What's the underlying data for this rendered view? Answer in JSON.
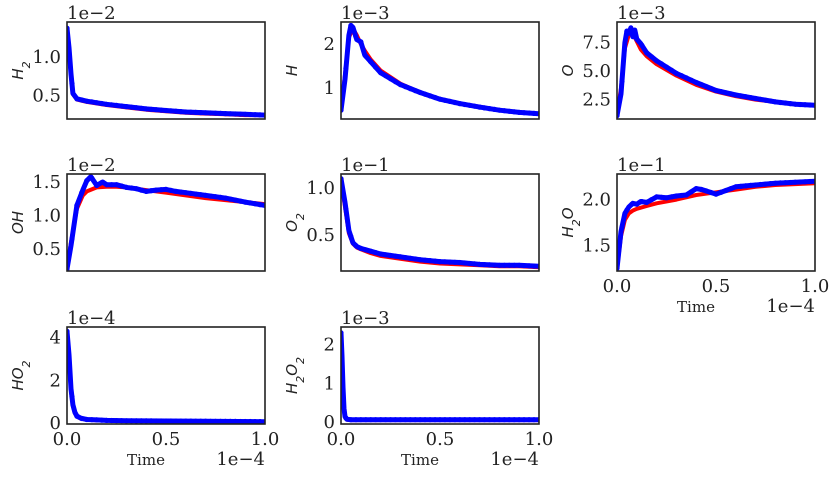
{
  "chart_data": [
    {
      "type": "line",
      "id": "h2",
      "ylabel": "H",
      "ylabel_sub": "2",
      "sci": "1e−2",
      "xlim": [
        0,
        1.0
      ],
      "ylim": [
        0.2,
        1.45
      ],
      "yticks": [
        0.5,
        1.0
      ],
      "ytick_labels": [
        "0.5",
        "1.0"
      ],
      "show_xticks": false,
      "xlabel": "",
      "xsci": "",
      "series": [
        {
          "color": "#ff0000",
          "x": [
            0,
            0.01,
            0.02,
            0.03,
            0.05,
            0.1,
            0.2,
            0.3,
            0.4,
            0.5,
            0.6,
            0.7,
            0.8,
            0.9,
            1.0
          ],
          "y": [
            1.37,
            1.1,
            0.75,
            0.52,
            0.45,
            0.42,
            0.38,
            0.35,
            0.32,
            0.3,
            0.28,
            0.27,
            0.26,
            0.25,
            0.25
          ]
        },
        {
          "color": "#0000ff",
          "x": [
            0,
            0.01,
            0.02,
            0.03,
            0.05,
            0.1,
            0.2,
            0.3,
            0.4,
            0.5,
            0.6,
            0.7,
            0.8,
            0.9,
            1.0
          ],
          "y": [
            1.37,
            1.12,
            0.78,
            0.53,
            0.46,
            0.43,
            0.39,
            0.36,
            0.33,
            0.31,
            0.29,
            0.28,
            0.27,
            0.26,
            0.25
          ]
        }
      ]
    },
    {
      "type": "line",
      "id": "h",
      "ylabel": "H",
      "ylabel_sub": "",
      "sci": "1e−3",
      "xlim": [
        0,
        1.0
      ],
      "ylim": [
        0.3,
        2.5
      ],
      "yticks": [
        1,
        2
      ],
      "ytick_labels": [
        "1",
        "2"
      ],
      "show_xticks": false,
      "xlabel": "",
      "xsci": "",
      "series": [
        {
          "color": "#ff0000",
          "x": [
            0,
            0.02,
            0.04,
            0.06,
            0.08,
            0.1,
            0.12,
            0.15,
            0.2,
            0.3,
            0.4,
            0.5,
            0.6,
            0.7,
            0.8,
            0.9,
            1.0
          ],
          "y": [
            0.55,
            1.3,
            2.15,
            2.35,
            2.2,
            2.0,
            1.85,
            1.65,
            1.4,
            1.1,
            0.9,
            0.75,
            0.65,
            0.58,
            0.5,
            0.45,
            0.42
          ]
        },
        {
          "color": "#0000ff",
          "x": [
            0,
            0.02,
            0.04,
            0.05,
            0.06,
            0.08,
            0.1,
            0.12,
            0.15,
            0.2,
            0.3,
            0.4,
            0.5,
            0.6,
            0.7,
            0.8,
            0.9,
            1.0
          ],
          "y": [
            0.5,
            1.2,
            2.2,
            2.42,
            2.38,
            2.1,
            2.05,
            1.75,
            1.6,
            1.35,
            1.08,
            0.9,
            0.75,
            0.65,
            0.57,
            0.5,
            0.45,
            0.42
          ]
        }
      ]
    },
    {
      "type": "line",
      "id": "o",
      "ylabel": "O",
      "ylabel_sub": "",
      "sci": "1e−3",
      "xlim": [
        0,
        1.0
      ],
      "ylim": [
        0.8,
        9.3
      ],
      "yticks": [
        2.5,
        5.0,
        7.5
      ],
      "ytick_labels": [
        "2.5",
        "5.0",
        "7.5"
      ],
      "show_xticks": false,
      "xlabel": "",
      "xsci": "",
      "series": [
        {
          "color": "#ff0000",
          "x": [
            0,
            0.02,
            0.04,
            0.06,
            0.08,
            0.1,
            0.12,
            0.15,
            0.2,
            0.3,
            0.4,
            0.5,
            0.6,
            0.7,
            0.8,
            0.9,
            1.0
          ],
          "y": [
            1.2,
            3.5,
            7.0,
            8.2,
            8.3,
            7.6,
            6.9,
            6.3,
            5.6,
            4.6,
            3.8,
            3.2,
            2.8,
            2.5,
            2.3,
            2.1,
            2.0
          ]
        },
        {
          "color": "#0000ff",
          "x": [
            0,
            0.02,
            0.04,
            0.05,
            0.06,
            0.07,
            0.08,
            0.09,
            0.1,
            0.12,
            0.15,
            0.2,
            0.3,
            0.4,
            0.5,
            0.6,
            0.7,
            0.8,
            0.9,
            1.0
          ],
          "y": [
            1.1,
            3.0,
            7.5,
            8.5,
            8.3,
            8.8,
            8.0,
            8.6,
            7.8,
            7.4,
            6.6,
            5.9,
            4.8,
            4.0,
            3.3,
            2.9,
            2.6,
            2.3,
            2.1,
            2.0
          ]
        }
      ]
    },
    {
      "type": "line",
      "id": "oh",
      "ylabel": "OH",
      "ylabel_sub": "",
      "sci": "1e−2",
      "xlim": [
        0,
        1.0
      ],
      "ylim": [
        0.17,
        1.62
      ],
      "yticks": [
        0.5,
        1.0,
        1.5
      ],
      "ytick_labels": [
        "0.5",
        "1.0",
        "1.5"
      ],
      "show_xticks": false,
      "xlabel": "",
      "xsci": "",
      "series": [
        {
          "color": "#ff0000",
          "x": [
            0,
            0.02,
            0.05,
            0.08,
            0.1,
            0.15,
            0.2,
            0.25,
            0.3,
            0.4,
            0.5,
            0.6,
            0.7,
            0.8,
            0.9,
            1.0
          ],
          "y": [
            0.2,
            0.6,
            1.1,
            1.3,
            1.36,
            1.42,
            1.43,
            1.43,
            1.42,
            1.38,
            1.34,
            1.3,
            1.26,
            1.23,
            1.2,
            1.17
          ]
        },
        {
          "color": "#0000ff",
          "x": [
            0,
            0.02,
            0.05,
            0.08,
            0.1,
            0.12,
            0.15,
            0.18,
            0.2,
            0.25,
            0.3,
            0.35,
            0.4,
            0.45,
            0.5,
            0.55,
            0.6,
            0.7,
            0.8,
            0.9,
            1.0
          ],
          "y": [
            0.2,
            0.55,
            1.15,
            1.38,
            1.52,
            1.58,
            1.45,
            1.5,
            1.46,
            1.46,
            1.42,
            1.4,
            1.36,
            1.38,
            1.39,
            1.36,
            1.34,
            1.3,
            1.26,
            1.2,
            1.15
          ]
        }
      ]
    },
    {
      "type": "line",
      "id": "o2",
      "ylabel": "O",
      "ylabel_sub": "2",
      "sci": "1e−1",
      "xlim": [
        0,
        1.0
      ],
      "ylim": [
        0.12,
        1.15
      ],
      "yticks": [
        0.5,
        1.0
      ],
      "ytick_labels": [
        "0.5",
        "1.0"
      ],
      "show_xticks": false,
      "xlabel": "",
      "xsci": "",
      "series": [
        {
          "color": "#ff0000",
          "x": [
            0,
            0.02,
            0.04,
            0.06,
            0.08,
            0.1,
            0.15,
            0.2,
            0.3,
            0.4,
            0.5,
            0.6,
            0.7,
            0.8,
            0.9,
            1.0
          ],
          "y": [
            1.08,
            0.8,
            0.52,
            0.41,
            0.37,
            0.35,
            0.31,
            0.28,
            0.25,
            0.22,
            0.2,
            0.19,
            0.18,
            0.17,
            0.17,
            0.16
          ]
        },
        {
          "color": "#0000ff",
          "x": [
            0,
            0.02,
            0.04,
            0.06,
            0.08,
            0.1,
            0.15,
            0.2,
            0.3,
            0.4,
            0.5,
            0.6,
            0.7,
            0.8,
            0.9,
            1.0
          ],
          "y": [
            1.1,
            0.85,
            0.55,
            0.42,
            0.38,
            0.36,
            0.33,
            0.3,
            0.27,
            0.24,
            0.22,
            0.21,
            0.19,
            0.18,
            0.18,
            0.17
          ]
        }
      ]
    },
    {
      "type": "line",
      "id": "h2o",
      "ylabel": "H",
      "ylabel_sub": "2",
      "ylabel_tail": "O",
      "sci": "1e−1",
      "xlim": [
        0,
        1.0
      ],
      "ylim": [
        1.22,
        2.28
      ],
      "yticks": [
        1.5,
        2.0
      ],
      "ytick_labels": [
        "1.5",
        "2.0"
      ],
      "show_xticks": true,
      "xticks": [
        0,
        0.5,
        1.0
      ],
      "xtick_labels": [
        "0.0",
        "0.5",
        "1.0"
      ],
      "xlabel": "Time",
      "xsci": "1e−4",
      "series": [
        {
          "color": "#ff0000",
          "x": [
            0,
            0.02,
            0.04,
            0.06,
            0.08,
            0.1,
            0.15,
            0.2,
            0.3,
            0.4,
            0.5,
            0.6,
            0.7,
            0.8,
            0.9,
            1.0
          ],
          "y": [
            1.25,
            1.6,
            1.78,
            1.85,
            1.88,
            1.9,
            1.93,
            1.96,
            2.0,
            2.05,
            2.08,
            2.11,
            2.14,
            2.16,
            2.17,
            2.18
          ]
        },
        {
          "color": "#0000ff",
          "x": [
            0,
            0.02,
            0.04,
            0.06,
            0.08,
            0.1,
            0.12,
            0.15,
            0.2,
            0.25,
            0.3,
            0.35,
            0.4,
            0.43,
            0.5,
            0.55,
            0.6,
            0.7,
            0.8,
            0.9,
            1.0
          ],
          "y": [
            1.25,
            1.65,
            1.85,
            1.92,
            1.96,
            1.95,
            1.98,
            1.97,
            2.03,
            2.02,
            2.04,
            2.05,
            2.12,
            2.11,
            2.06,
            2.1,
            2.14,
            2.16,
            2.18,
            2.19,
            2.2
          ]
        }
      ]
    },
    {
      "type": "line",
      "id": "ho2",
      "ylabel": "HO",
      "ylabel_sub": "2",
      "sci": "1e−4",
      "xlim": [
        0,
        1.0
      ],
      "ylim": [
        -0.05,
        4.5
      ],
      "yticks": [
        0,
        2,
        4
      ],
      "ytick_labels": [
        "0",
        "2",
        "4"
      ],
      "show_xticks": true,
      "xticks": [
        0,
        0.5,
        1.0
      ],
      "xtick_labels": [
        "0.0",
        "0.5",
        "1.0"
      ],
      "xlabel": "Time",
      "xsci": "1e−4",
      "series": [
        {
          "color": "#ff0000",
          "x": [
            0,
            0.01,
            0.02,
            0.03,
            0.04,
            0.05,
            0.07,
            0.1,
            0.15,
            0.2,
            0.3,
            0.5,
            0.7,
            1.0
          ],
          "y": [
            4.3,
            3.0,
            1.5,
            0.8,
            0.45,
            0.3,
            0.2,
            0.15,
            0.13,
            0.12,
            0.1,
            0.08,
            0.07,
            0.06
          ]
        },
        {
          "color": "#0000ff",
          "x": [
            0,
            0.01,
            0.02,
            0.03,
            0.04,
            0.05,
            0.07,
            0.1,
            0.15,
            0.2,
            0.3,
            0.5,
            0.7,
            1.0
          ],
          "y": [
            4.3,
            3.2,
            1.6,
            0.85,
            0.5,
            0.32,
            0.22,
            0.16,
            0.14,
            0.12,
            0.1,
            0.09,
            0.08,
            0.06
          ]
        }
      ]
    },
    {
      "type": "line",
      "id": "h2o2",
      "ylabel": "H",
      "ylabel_sub": "2",
      "ylabel_tail": "O",
      "ylabel_sub2": "2",
      "sci": "1e−3",
      "xlim": [
        0,
        1.0
      ],
      "ylim": [
        -0.05,
        2.45
      ],
      "yticks": [
        0,
        1,
        2
      ],
      "ytick_labels": [
        "0",
        "1",
        "2"
      ],
      "show_xticks": true,
      "xticks": [
        0,
        0.5,
        1.0
      ],
      "xtick_labels": [
        "0.0",
        "0.5",
        "1.0"
      ],
      "xlabel": "Time",
      "xsci": "1e−4",
      "series": [
        {
          "color": "#ff0000",
          "x": [
            0,
            0.005,
            0.01,
            0.015,
            0.02,
            0.03,
            0.05,
            0.1,
            0.3,
            0.6,
            1.0
          ],
          "y": [
            2.3,
            1.6,
            0.8,
            0.3,
            0.12,
            0.06,
            0.05,
            0.05,
            0.05,
            0.05,
            0.05
          ]
        },
        {
          "color": "#0000ff",
          "x": [
            0,
            0.005,
            0.01,
            0.015,
            0.02,
            0.03,
            0.05,
            0.1,
            0.3,
            0.6,
            1.0
          ],
          "y": [
            2.3,
            1.7,
            0.9,
            0.35,
            0.14,
            0.07,
            0.06,
            0.06,
            0.06,
            0.06,
            0.06
          ]
        }
      ]
    }
  ]
}
